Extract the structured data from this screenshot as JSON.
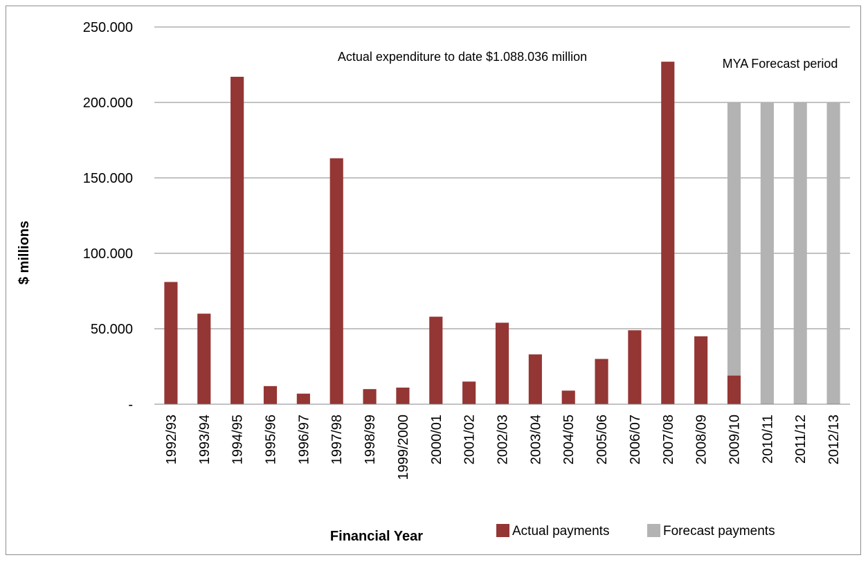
{
  "chart_data": {
    "type": "bar",
    "stacked": true,
    "title": "",
    "xlabel": "Financial Year",
    "ylabel": "$ millions",
    "ylim": [
      0,
      250
    ],
    "ytick_values": [
      0,
      50,
      100,
      150,
      200,
      250
    ],
    "ytick_labels": [
      "-",
      "50.000",
      "100.000",
      "150.000",
      "200.000",
      "250.000"
    ],
    "grid": true,
    "legend_position": "bottom",
    "categories": [
      "1992/93",
      "1993/94",
      "1994/95",
      "1995/96",
      "1996/97",
      "1997/98",
      "1998/99",
      "1999/2000",
      "2000/01",
      "2001/02",
      "2002/03",
      "2003/04",
      "2004/05",
      "2005/06",
      "2006/07",
      "2007/08",
      "2008/09",
      "2009/10",
      "2010/11",
      "2011/12",
      "2012/13"
    ],
    "series": [
      {
        "name": "Actual payments",
        "color": "#943634",
        "values": [
          81,
          60,
          217,
          12,
          7,
          163,
          10,
          11,
          58,
          15,
          54,
          33,
          9,
          30,
          49,
          227,
          45,
          19,
          0,
          0,
          0
        ]
      },
      {
        "name": "Forecast payments",
        "color": "#b3b3b3",
        "values": [
          0,
          0,
          0,
          0,
          0,
          0,
          0,
          0,
          0,
          0,
          0,
          0,
          0,
          0,
          0,
          0,
          0,
          181,
          200,
          200,
          200
        ]
      }
    ],
    "annotations": [
      "Actual expenditure to date $1.088.036 million",
      "MYA Forecast period"
    ]
  }
}
